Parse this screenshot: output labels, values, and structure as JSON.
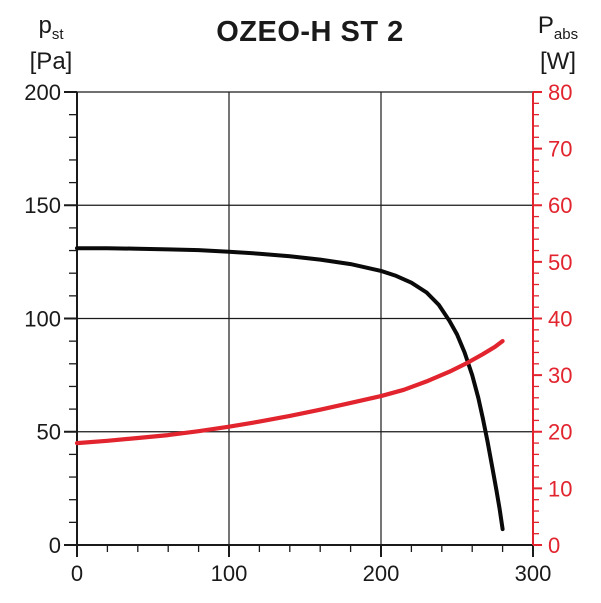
{
  "title": "OZEO-H ST 2",
  "chart_data": {
    "type": "line",
    "title": "OZEO-H ST 2",
    "x_axis": {
      "range": [
        0,
        300
      ],
      "major_ticks": [
        0,
        100,
        200,
        300
      ],
      "minor_step": 20,
      "color": "#1a1a1a"
    },
    "left_axis": {
      "symbol": "p",
      "symbol_sub": "st",
      "unit": "[Pa]",
      "range": [
        0,
        200
      ],
      "major_ticks": [
        0,
        50,
        100,
        150,
        200
      ],
      "minor_step": 10,
      "color": "#1a1a1a"
    },
    "right_axis": {
      "symbol": "P",
      "symbol_sub": "abs",
      "unit": "[W]",
      "range": [
        0,
        80
      ],
      "major_ticks": [
        0,
        10,
        20,
        30,
        40,
        50,
        60,
        70,
        80
      ],
      "minor_step": 2,
      "color": "#e2242e"
    },
    "grid": {
      "h_lines_left_values": [
        50,
        100,
        150,
        200
      ],
      "v_lines_x_values": [
        100,
        200
      ]
    },
    "legend": "none",
    "series": [
      {
        "name": "static-pressure-pst-Pa",
        "axis": "left",
        "color": "#0a0a0a",
        "width": 4,
        "points": [
          [
            0,
            131
          ],
          [
            20,
            131
          ],
          [
            40,
            130.8
          ],
          [
            60,
            130.5
          ],
          [
            80,
            130.2
          ],
          [
            100,
            129.5
          ],
          [
            120,
            128.6
          ],
          [
            140,
            127.5
          ],
          [
            160,
            126
          ],
          [
            180,
            124
          ],
          [
            200,
            121
          ],
          [
            210,
            118.8
          ],
          [
            220,
            115.8
          ],
          [
            230,
            111.5
          ],
          [
            238,
            106
          ],
          [
            245,
            99
          ],
          [
            250,
            93
          ],
          [
            255,
            85
          ],
          [
            260,
            75
          ],
          [
            264,
            65
          ],
          [
            267,
            56
          ],
          [
            270,
            46
          ],
          [
            273,
            35
          ],
          [
            276,
            24
          ],
          [
            278,
            16
          ],
          [
            280,
            7
          ]
        ]
      },
      {
        "name": "absorbed-power-pabs-W",
        "axis": "right",
        "color": "#e2242e",
        "width": 4.2,
        "points": [
          [
            0,
            18
          ],
          [
            20,
            18.4
          ],
          [
            40,
            18.9
          ],
          [
            60,
            19.4
          ],
          [
            80,
            20.1
          ],
          [
            100,
            20.9
          ],
          [
            120,
            21.8
          ],
          [
            140,
            22.8
          ],
          [
            160,
            23.9
          ],
          [
            180,
            25.1
          ],
          [
            200,
            26.3
          ],
          [
            215,
            27.4
          ],
          [
            230,
            28.9
          ],
          [
            245,
            30.6
          ],
          [
            257,
            32.2
          ],
          [
            267,
            33.7
          ],
          [
            275,
            35
          ],
          [
            280,
            36
          ]
        ]
      }
    ]
  }
}
